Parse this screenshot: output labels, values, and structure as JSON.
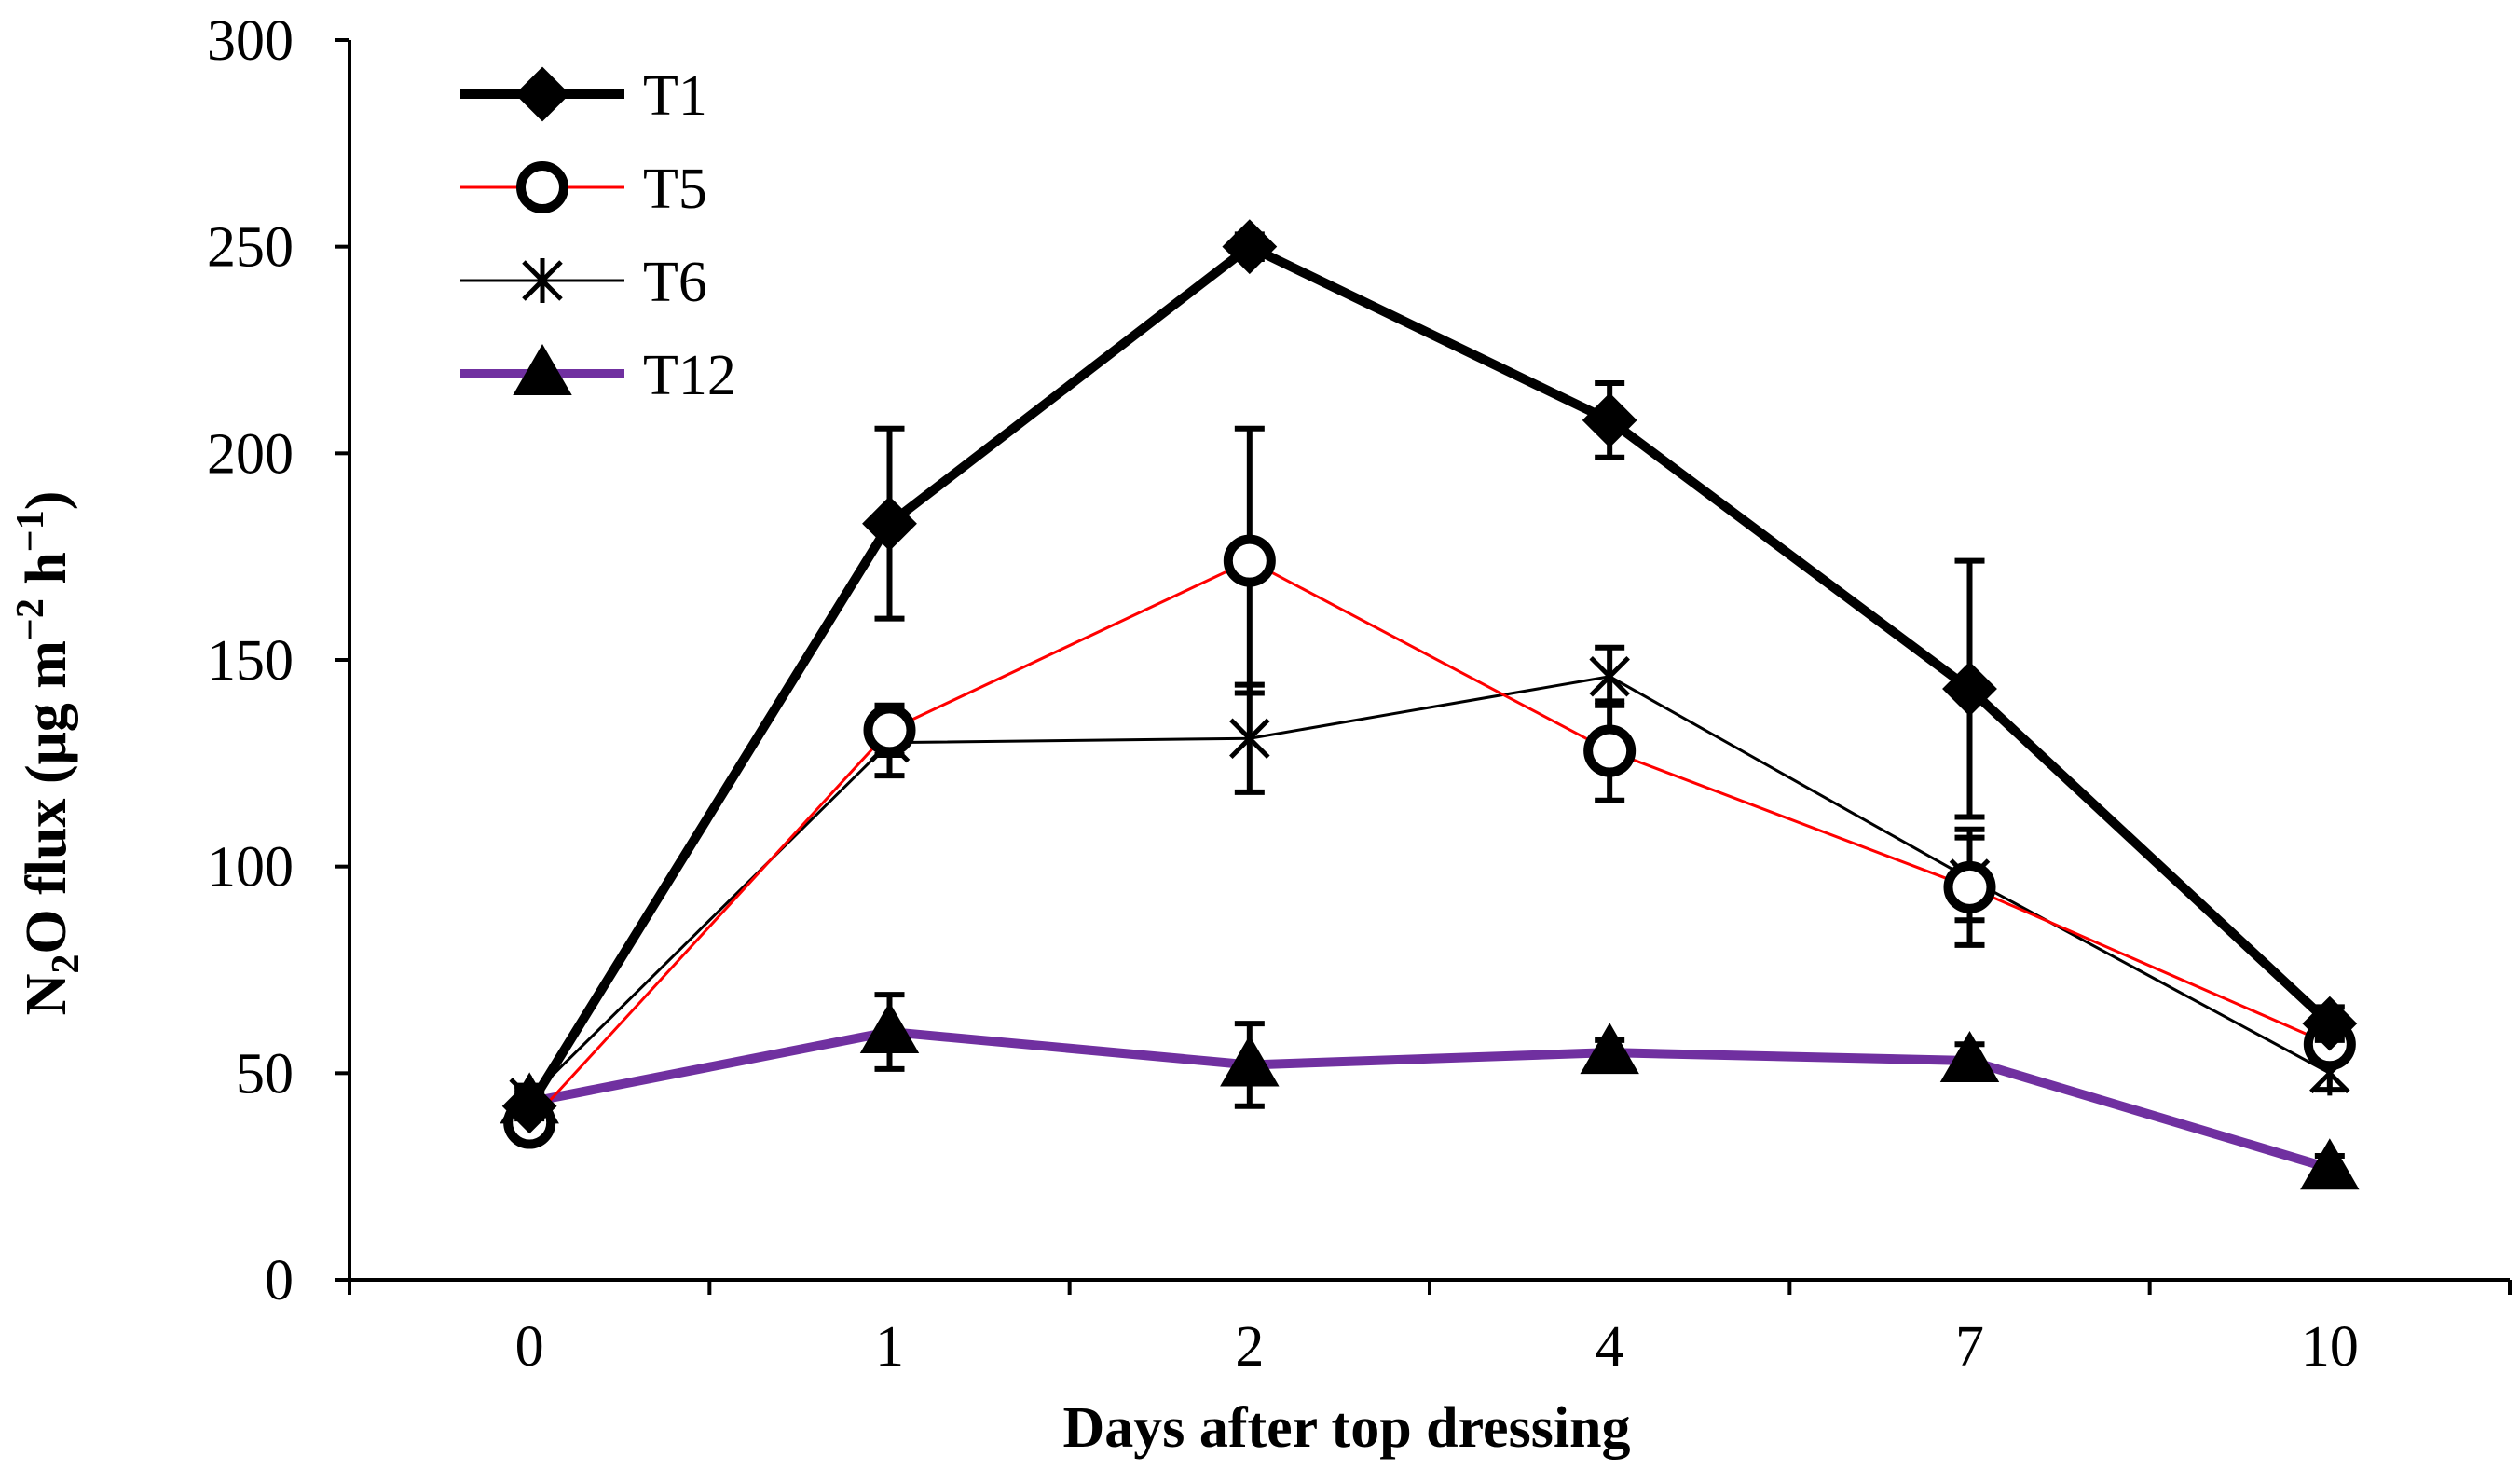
{
  "chart_data": {
    "type": "line",
    "title": "",
    "xlabel": "Days after top dressing",
    "ylabel": "N2O flux (μg m−2 h−1)",
    "ylabel_parts": {
      "a": "N",
      "sub": "2",
      "b": "O flux (μg m",
      "sup1": "−2",
      "c": " h",
      "sup2": "−1",
      "d": ")"
    },
    "categories": [
      "0",
      "1",
      "2",
      "4",
      "7",
      "10"
    ],
    "ylim": [
      0,
      300
    ],
    "yticks": [
      0,
      50,
      100,
      150,
      200,
      250,
      300
    ],
    "grid": false,
    "legend_position": "top-left",
    "series": [
      {
        "name": "T1",
        "color": "#000000",
        "marker": "diamond",
        "line": "thick",
        "values": [
          42,
          183,
          250,
          208,
          143,
          62
        ],
        "errors": [
          3,
          23,
          3,
          9,
          31,
          4
        ]
      },
      {
        "name": "T5",
        "color": "#ff0000",
        "marker": "circle",
        "line": "thin",
        "values": [
          38,
          133,
          174,
          128,
          95,
          57
        ],
        "errors": [
          3,
          6,
          32,
          12,
          14,
          4
        ]
      },
      {
        "name": "T6",
        "color": "#000000",
        "marker": "star",
        "line": "thin",
        "values": [
          44,
          130,
          131,
          146,
          97,
          50
        ],
        "errors": [
          3,
          8,
          13,
          7,
          10,
          4
        ]
      },
      {
        "name": "T12",
        "color": "#7030a0",
        "marker": "triangle",
        "line": "thick",
        "values": [
          43,
          60,
          52,
          55,
          53,
          27
        ],
        "errors": [
          3,
          9,
          10,
          3,
          4,
          3
        ]
      }
    ]
  }
}
